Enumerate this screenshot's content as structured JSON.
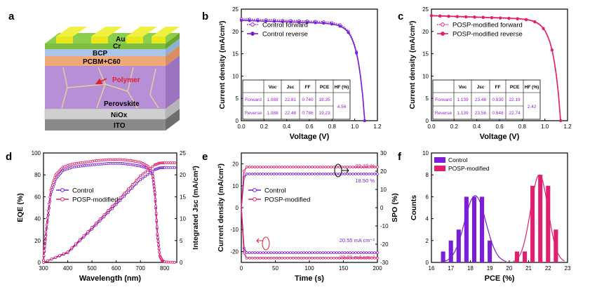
{
  "panels": {
    "a": {
      "letter": "a",
      "layers": [
        "Au",
        "Cr",
        "BCP",
        "PCBM+C60",
        "Polymer",
        "Perovskite",
        "NiOx",
        "ITO"
      ],
      "colors": {
        "au": "#e8e81a",
        "cr": "#7fbf3f",
        "bcp": "#a9c6e8",
        "pcbm": "#f2a97a",
        "perovskite": "#b68fd6",
        "polymer_text": "#e0202a",
        "nio": "#cfcfcf",
        "ito": "#8a8a8a"
      }
    },
    "b": {
      "letter": "b"
    },
    "c": {
      "letter": "c"
    },
    "d": {
      "letter": "d"
    },
    "e": {
      "letter": "e"
    },
    "f": {
      "letter": "f"
    }
  },
  "colors": {
    "control": "#7a1fd6",
    "posp": "#e0206e",
    "axis": "#000000",
    "table_text": "#9a1fd0"
  },
  "chart_data": [
    {
      "id": "b",
      "type": "line",
      "xlabel": "Voltage (V)",
      "ylabel": "Current density (mA/cm²)",
      "xlim": [
        0,
        1.2
      ],
      "ylim": [
        0,
        25
      ],
      "xticks": [
        "0.0",
        "0.2",
        "0.4",
        "0.6",
        "0.8",
        "1.0",
        "1.2"
      ],
      "yticks": [
        "0",
        "5",
        "10",
        "15",
        "20",
        "25"
      ],
      "legend": [
        "Control forward",
        "Control reverse"
      ],
      "series": [
        {
          "name": "Control forward",
          "jsc": 22.81,
          "voc": 1.088,
          "style": "dotted"
        },
        {
          "name": "Control reverse",
          "jsc": 22.48,
          "voc": 1.088,
          "style": "solid"
        }
      ],
      "table": {
        "header": [
          "",
          "Voc",
          "Jsc",
          "FF",
          "PCE",
          "HF (%)"
        ],
        "rows": [
          [
            "Forward",
            "1.088",
            "22.81",
            "0.740",
            "18.35"
          ],
          [
            "Reverse",
            "1.088",
            "22.48",
            "0.786",
            "19.23"
          ]
        ],
        "hf": "4.56"
      }
    },
    {
      "id": "c",
      "type": "line",
      "xlabel": "Voltage (V)",
      "ylabel": "Current density (mA/cm²)",
      "xlim": [
        0,
        1.2
      ],
      "ylim": [
        0,
        25
      ],
      "xticks": [
        "0.0",
        "0.2",
        "0.4",
        "0.6",
        "0.8",
        "1.0",
        "1.2"
      ],
      "yticks": [
        "0",
        "5",
        "10",
        "15",
        "20",
        "25"
      ],
      "legend": [
        "POSP-modified forward",
        "POSP-modified reverse"
      ],
      "series": [
        {
          "name": "POSP-modified forward",
          "jsc": 23.48,
          "voc": 1.139,
          "style": "dotted"
        },
        {
          "name": "POSP-modified reverse",
          "jsc": 23.56,
          "voc": 1.139,
          "style": "solid"
        }
      ],
      "table": {
        "header": [
          "",
          "Voc",
          "Jsc",
          "FF",
          "PCE",
          "HF (%)"
        ],
        "rows": [
          [
            "Forward",
            "1.139",
            "23.48",
            "0.830",
            "22.19"
          ],
          [
            "Reverse",
            "1.139",
            "23.56",
            "0.848",
            "22.74"
          ]
        ],
        "hf": "2.42"
      }
    },
    {
      "id": "d",
      "type": "line",
      "xlabel": "Wavelength (nm)",
      "ylabel": "EQE (%)",
      "y2label": "Integrated Jsc (mA/cm²)",
      "xlim": [
        300,
        850
      ],
      "ylim": [
        0,
        100
      ],
      "y2lim": [
        0,
        25
      ],
      "xticks": [
        "300",
        "400",
        "500",
        "600",
        "700",
        "800"
      ],
      "yticks": [
        "0",
        "20",
        "40",
        "60",
        "80",
        "100"
      ],
      "y2ticks": [
        "0",
        "5",
        "10",
        "15",
        "20",
        "25"
      ],
      "legend": [
        "Control",
        "POSP-modified"
      ],
      "series": [
        {
          "name": "Control EQE",
          "x": [
            300,
            310,
            330,
            350,
            380,
            420,
            470,
            520,
            570,
            620,
            660,
            700,
            730,
            750,
            760,
            770,
            780,
            790,
            800,
            850
          ],
          "y": [
            2,
            25,
            62,
            76,
            84,
            87,
            88.5,
            89.5,
            90.5,
            90.5,
            89.5,
            88,
            86,
            80,
            62,
            25,
            6,
            1.5,
            0.5,
            0
          ]
        },
        {
          "name": "POSP-modified EQE",
          "x": [
            300,
            310,
            330,
            350,
            380,
            420,
            470,
            520,
            570,
            620,
            660,
            700,
            730,
            750,
            760,
            770,
            780,
            790,
            800,
            850
          ],
          "y": [
            2,
            28,
            66,
            80,
            87,
            90,
            91.5,
            93,
            94,
            94,
            93,
            91.5,
            88,
            82,
            64,
            26,
            6,
            1.5,
            0.5,
            0
          ]
        },
        {
          "name": "Control integrated Jsc",
          "x": [
            300,
            400,
            500,
            600,
            700,
            760,
            780,
            800,
            850
          ],
          "y": [
            0,
            2.2,
            7.6,
            13.2,
            18.9,
            21.2,
            21.6,
            21.65,
            21.65
          ]
        },
        {
          "name": "POSP-modified integrated Jsc",
          "x": [
            300,
            400,
            500,
            600,
            700,
            760,
            780,
            800,
            850
          ],
          "y": [
            0,
            2.4,
            8.0,
            13.8,
            19.8,
            22.3,
            22.7,
            22.75,
            22.75
          ]
        }
      ]
    },
    {
      "id": "e",
      "type": "line",
      "xlabel": "Time (s)",
      "ylabel": "Current density (mA/cm²)",
      "y2label": "SPO (%)",
      "xlim": [
        0,
        200
      ],
      "ylim": [
        -25,
        25
      ],
      "y2lim": [
        -30,
        30
      ],
      "xticks": [
        "0",
        "50",
        "100",
        "150",
        "200"
      ],
      "yticks": [
        "-20",
        "-10",
        "0",
        "10",
        "20"
      ],
      "y2ticks": [
        "-30",
        "-20",
        "-10",
        "0",
        "10",
        "20",
        "30"
      ],
      "legend": [
        "Control",
        "POSP-modified"
      ],
      "annotations": [
        "22.32 %",
        "18.50 %",
        "20.55 mA cm⁻²",
        "23.01 mA cm⁻²"
      ],
      "series": [
        {
          "name": "Control SPO",
          "axis": "right",
          "steady": 18.5
        },
        {
          "name": "POSP-modified SPO",
          "axis": "right",
          "steady": 22.32
        },
        {
          "name": "Control current",
          "axis": "left",
          "steady": -20.55
        },
        {
          "name": "POSP-modified current",
          "axis": "left",
          "steady": -23.01
        }
      ]
    },
    {
      "id": "f",
      "type": "bar",
      "xlabel": "PCE (%)",
      "ylabel": "Counts",
      "xlim": [
        16,
        23
      ],
      "ylim": [
        0,
        10
      ],
      "xticks": [
        "16",
        "17",
        "18",
        "19",
        "20",
        "21",
        "22",
        "23"
      ],
      "yticks": [
        "0",
        "2",
        "4",
        "6",
        "8",
        "10"
      ],
      "legend": [
        "Control",
        "POSP-modified"
      ],
      "series": [
        {
          "name": "Control",
          "x": [
            16.6,
            17.0,
            17.4,
            17.8,
            18.2,
            18.6,
            19.0
          ],
          "values": [
            1,
            2,
            3,
            6,
            6,
            6,
            2
          ]
        },
        {
          "name": "POSP-modified",
          "x": [
            20.4,
            20.8,
            21.2,
            21.6,
            22.0,
            22.4
          ],
          "values": [
            1,
            1,
            7,
            8,
            7,
            3
          ]
        }
      ]
    }
  ]
}
